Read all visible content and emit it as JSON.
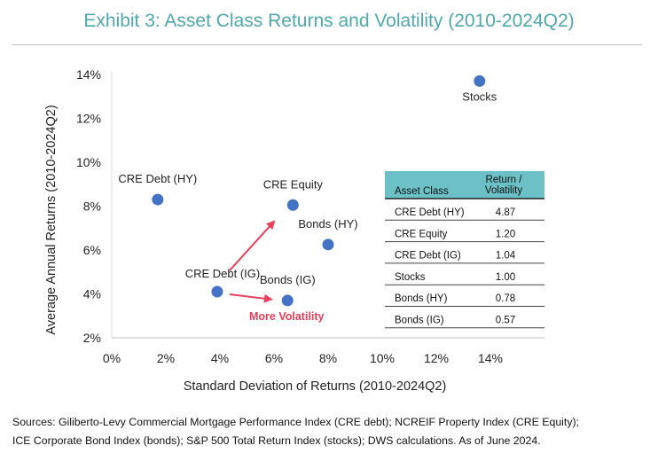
{
  "title": "Exhibit 3: Asset Class Returns and Volatility (2010-2024Q2)",
  "chart_data": {
    "type": "scatter",
    "xlabel": "Standard Deviation of Returns (2010-2024Q2)",
    "ylabel": "Average Annual Returns (2010-2024Q2)",
    "xlim": [
      0,
      16
    ],
    "ylim": [
      2,
      14
    ],
    "xticks": [
      0,
      2,
      4,
      6,
      8,
      10,
      12,
      14
    ],
    "xtick_labels": [
      "0%",
      "2%",
      "4%",
      "6%",
      "8%",
      "10%",
      "12%",
      "14%"
    ],
    "yticks": [
      2,
      4,
      6,
      8,
      10,
      12,
      14
    ],
    "ytick_labels": [
      "2%",
      "4%",
      "6%",
      "8%",
      "10%",
      "12%",
      "14%"
    ],
    "grid": false,
    "marker_color": "#4472c4",
    "points": [
      {
        "label": "Stocks",
        "x": 13.6,
        "y": 13.7,
        "label_pos": "below"
      },
      {
        "label": "CRE Debt (HY)",
        "x": 1.7,
        "y": 8.3,
        "label_pos": "above"
      },
      {
        "label": "CRE Equity",
        "x": 6.7,
        "y": 8.05,
        "label_pos": "above"
      },
      {
        "label": "Bonds (HY)",
        "x": 8.0,
        "y": 6.25,
        "label_pos": "above"
      },
      {
        "label": "CRE Debt (IG)",
        "x": 3.9,
        "y": 4.1,
        "label_pos": "above-left"
      },
      {
        "label": "Bonds (IG)",
        "x": 6.5,
        "y": 3.7,
        "label_pos": "above"
      }
    ],
    "annotation": {
      "text": "More Volatility",
      "color": "#e8405a"
    },
    "table": {
      "header_bg": "#6cc1c6",
      "headers": [
        "Asset Class",
        "Return / Volatility"
      ],
      "rows": [
        [
          "CRE Debt (HY)",
          "4.87"
        ],
        [
          "CRE Equity",
          "1.20"
        ],
        [
          "CRE Debt (IG)",
          "1.04"
        ],
        [
          "Stocks",
          "1.00"
        ],
        [
          "Bonds (HY)",
          "0.78"
        ],
        [
          "Bonds (IG)",
          "0.57"
        ]
      ]
    }
  },
  "sources": [
    "Sources: Giliberto-Levy Commercial Mortgage Performance Index (CRE debt); NCREIF Property Index (CRE Equity);",
    "ICE Corporate Bond Index (bonds); S&P 500 Total Return Index (stocks); DWS calculations. As of June 2024."
  ]
}
